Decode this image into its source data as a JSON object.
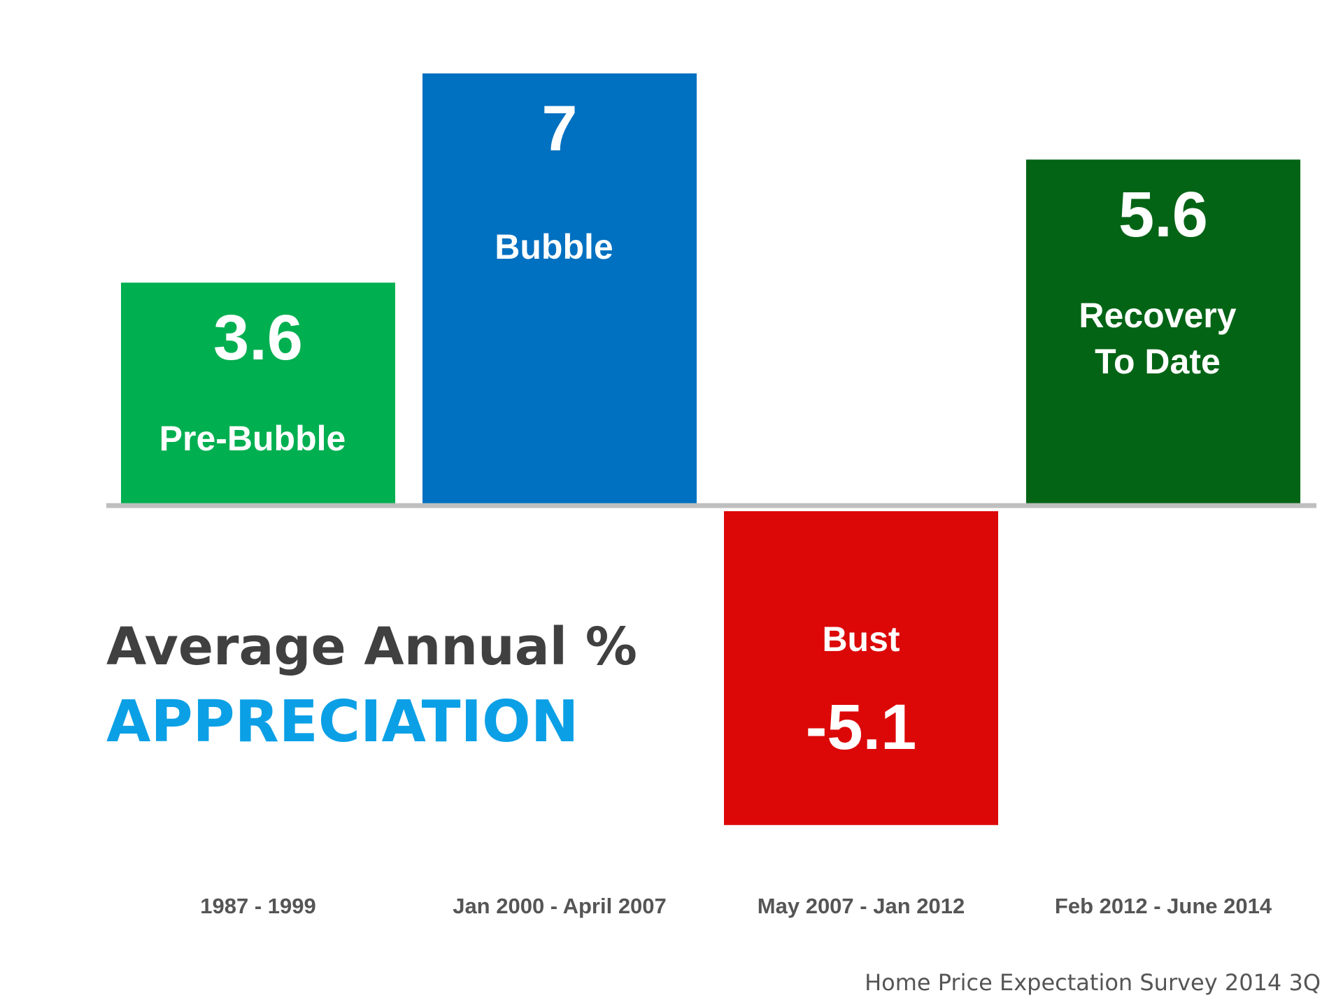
{
  "chart_data": {
    "type": "bar",
    "title_line1": "Average Annual %",
    "title_line2": "APPRECIATION",
    "source": "Home Price Expectation Survey 2014 3Q",
    "ylim": [
      -7,
      7
    ],
    "grid": false,
    "legend": "none",
    "categories": [
      "1987 - 1999",
      "Jan 2000 - April 2007",
      "May 2007 - Jan 2012",
      "Feb 2012 - June 2014"
    ],
    "values": [
      3.6,
      7,
      -5.1,
      5.6
    ],
    "value_labels": [
      "3.6",
      "7",
      "-5.1",
      "5.6"
    ],
    "bar_labels": [
      [
        "Pre-Bubble"
      ],
      [
        "Bubble"
      ],
      [
        "Bust"
      ],
      [
        "Recovery",
        "To Date"
      ]
    ],
    "colors": [
      "#00AF50",
      "#0070C0",
      "#DC0808",
      "#036415"
    ],
    "axis_color": "#BFBFBF",
    "title_accent_color": "#0BA0E6"
  }
}
